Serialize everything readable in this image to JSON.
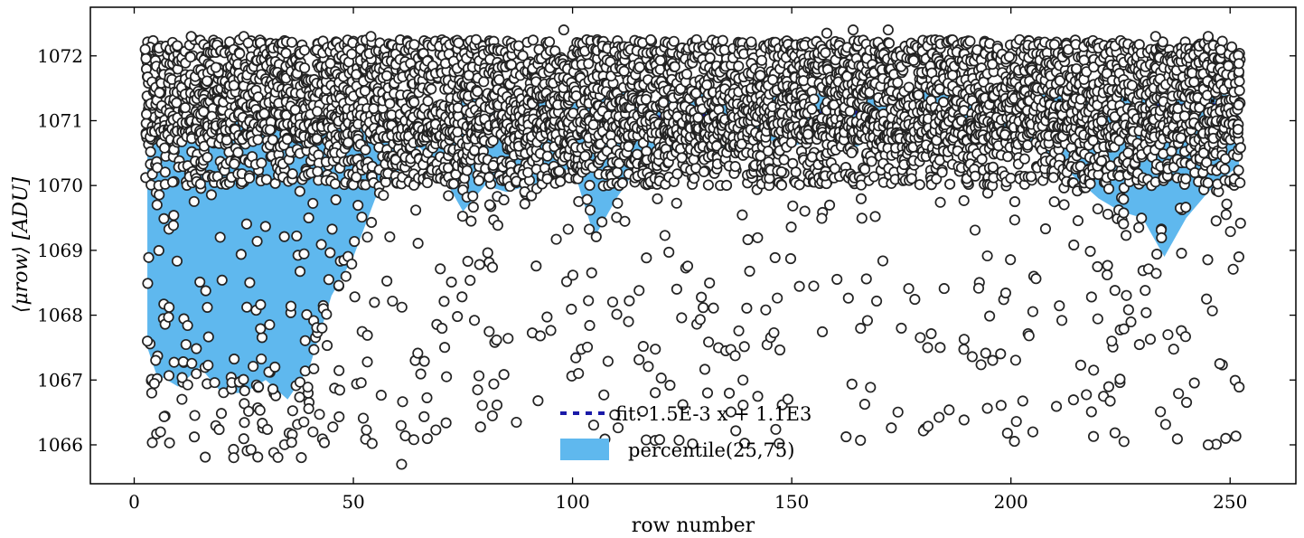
{
  "chart_data": {
    "type": "scatter",
    "title": "",
    "xlabel": "row number",
    "ylabel": "⟨μrow⟩ [ADU]",
    "xlim": [
      -10,
      265
    ],
    "ylim": [
      1065.4,
      1072.75
    ],
    "x_ticks": [
      0,
      50,
      100,
      150,
      200,
      250
    ],
    "y_ticks": [
      1066,
      1067,
      1068,
      1069,
      1070,
      1071,
      1072
    ],
    "grid": false,
    "legend_position": "bottom-center",
    "colors": {
      "band": "#5fb8ee",
      "points_edge": "#222222",
      "points_fill": "#ffffff",
      "fit": "#1a1aa8",
      "median": "#111111"
    },
    "fit": {
      "label": "fit: 1.5E-3 x + 1.1E3",
      "slope": 0.0015,
      "x_range": [
        3,
        252
      ],
      "y_start": 1070.88
    },
    "band": {
      "label": "percentile(25,75)",
      "x": [
        3,
        5,
        10,
        15,
        20,
        25,
        30,
        35,
        40,
        45,
        50,
        55,
        60,
        65,
        70,
        75,
        80,
        85,
        90,
        95,
        100,
        105,
        110,
        115,
        120,
        125,
        130,
        135,
        140,
        145,
        150,
        155,
        160,
        165,
        170,
        175,
        180,
        185,
        190,
        195,
        200,
        205,
        210,
        215,
        220,
        225,
        230,
        235,
        240,
        245,
        250,
        252
      ],
      "lower": [
        1067.5,
        1067.1,
        1066.9,
        1067.2,
        1066.8,
        1066.8,
        1067.0,
        1066.7,
        1067.2,
        1068.3,
        1068.9,
        1069.8,
        1070.2,
        1070.6,
        1070.2,
        1069.6,
        1070.0,
        1069.9,
        1070.0,
        1070.1,
        1070.3,
        1069.2,
        1069.8,
        1070.3,
        1070.5,
        1070.6,
        1070.6,
        1070.5,
        1070.7,
        1070.7,
        1070.6,
        1070.7,
        1070.7,
        1070.6,
        1070.8,
        1070.7,
        1070.8,
        1070.7,
        1070.6,
        1070.7,
        1070.6,
        1070.6,
        1070.4,
        1070.1,
        1069.8,
        1069.6,
        1069.5,
        1068.9,
        1069.5,
        1069.9,
        1070.2,
        1070.3
      ],
      "upper": [
        1071.3,
        1071.2,
        1071.1,
        1071.0,
        1071.0,
        1071.1,
        1071.0,
        1070.9,
        1071.0,
        1071.1,
        1071.0,
        1071.0,
        1071.0,
        1071.1,
        1071.2,
        1071.4,
        1071.3,
        1071.2,
        1071.3,
        1071.4,
        1071.3,
        1071.4,
        1071.5,
        1071.3,
        1071.3,
        1071.5,
        1071.4,
        1071.3,
        1071.5,
        1071.5,
        1071.4,
        1071.4,
        1071.5,
        1071.5,
        1071.4,
        1071.5,
        1071.5,
        1071.4,
        1071.5,
        1071.4,
        1071.4,
        1071.4,
        1071.4,
        1071.4,
        1071.4,
        1071.5,
        1071.4,
        1071.3,
        1071.4,
        1071.4,
        1071.4,
        1071.3
      ]
    },
    "scatter": {
      "x_range": [
        3,
        252
      ],
      "points_per_row": 24,
      "distribution_note": "per-row means; dense cluster 1070-1072.3, sparse tail down to ~1065.8",
      "sample_points": [
        [
          2.5,
          1072.1
        ],
        [
          2.8,
          1071.1
        ],
        [
          3,
          1067.6
        ],
        [
          4,
          1066.8
        ],
        [
          6,
          1066.2
        ],
        [
          13,
          1072.3
        ],
        [
          25,
          1072.3
        ],
        [
          26,
          1072.2
        ],
        [
          54,
          1072.3
        ],
        [
          61,
          1065.7
        ],
        [
          98,
          1072.4
        ],
        [
          164,
          1072.4
        ],
        [
          172,
          1072.4
        ],
        [
          233,
          1072.3
        ],
        [
          245,
          1072.3
        ],
        [
          74,
          1072.2
        ],
        [
          78,
          1072.25
        ],
        [
          158,
          1072.35
        ],
        [
          252,
          1068.9
        ],
        [
          205,
          1066.2
        ],
        [
          245,
          1066.0
        ],
        [
          249,
          1066.1
        ],
        [
          175,
          1067.8
        ],
        [
          181,
          1067.5
        ],
        [
          223,
          1067.6
        ]
      ]
    }
  }
}
